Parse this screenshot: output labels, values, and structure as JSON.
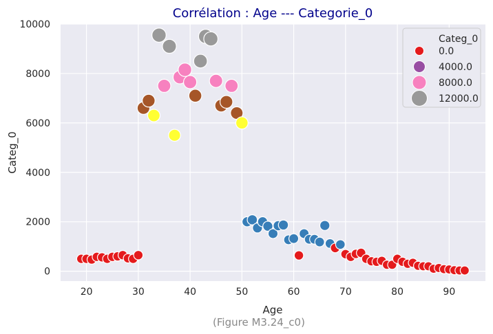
{
  "chart_data": {
    "type": "scatter",
    "title": "Corrélation :  Age --- Categorie_0",
    "xlabel": "Age",
    "ylabel": "Categ_0",
    "caption": "(Figure M3.24_c0)",
    "xlim": [
      15,
      97
    ],
    "ylim": [
      -400,
      10000
    ],
    "xticks": [
      20,
      30,
      40,
      50,
      60,
      70,
      80,
      90
    ],
    "yticks": [
      0,
      2000,
      4000,
      6000,
      8000,
      10000
    ],
    "grid": true,
    "legend": {
      "title": "Categ_0",
      "placement": "top-right",
      "entries": [
        {
          "label": "0.0",
          "color": "#e41a1c",
          "size_level": 1
        },
        {
          "label": "4000.0",
          "color": "#984ea3",
          "size_level": 2
        },
        {
          "label": "8000.0",
          "color": "#f781bf",
          "size_level": 3
        },
        {
          "label": "12000.0",
          "color": "#999999",
          "size_level": 4
        }
      ]
    },
    "colors": {
      "background": "#eaeaf2",
      "grid": "#ffffff",
      "title": "#00008b"
    },
    "points": [
      {
        "x": 19,
        "y": 500,
        "color": "#e41a1c"
      },
      {
        "x": 20,
        "y": 500,
        "color": "#e41a1c"
      },
      {
        "x": 21,
        "y": 470,
        "color": "#e41a1c"
      },
      {
        "x": 22,
        "y": 580,
        "color": "#e41a1c"
      },
      {
        "x": 23,
        "y": 560,
        "color": "#e41a1c"
      },
      {
        "x": 24,
        "y": 500,
        "color": "#e41a1c"
      },
      {
        "x": 25,
        "y": 580,
        "color": "#e41a1c"
      },
      {
        "x": 26,
        "y": 600,
        "color": "#e41a1c"
      },
      {
        "x": 27,
        "y": 650,
        "color": "#e41a1c"
      },
      {
        "x": 28,
        "y": 520,
        "color": "#e41a1c"
      },
      {
        "x": 29,
        "y": 500,
        "color": "#e41a1c"
      },
      {
        "x": 30,
        "y": 650,
        "color": "#e41a1c"
      },
      {
        "x": 31,
        "y": 6600,
        "color": "#a65628"
      },
      {
        "x": 32,
        "y": 6900,
        "color": "#a65628"
      },
      {
        "x": 33,
        "y": 6300,
        "color": "#ffff33"
      },
      {
        "x": 34,
        "y": 9550,
        "color": "#999999"
      },
      {
        "x": 35,
        "y": 7500,
        "color": "#f781bf"
      },
      {
        "x": 36,
        "y": 9100,
        "color": "#999999"
      },
      {
        "x": 37,
        "y": 5500,
        "color": "#ffff33"
      },
      {
        "x": 38,
        "y": 7850,
        "color": "#f781bf"
      },
      {
        "x": 39,
        "y": 8150,
        "color": "#f781bf"
      },
      {
        "x": 40,
        "y": 7650,
        "color": "#f781bf"
      },
      {
        "x": 41,
        "y": 7100,
        "color": "#a65628"
      },
      {
        "x": 42,
        "y": 8500,
        "color": "#999999"
      },
      {
        "x": 43,
        "y": 9500,
        "color": "#999999"
      },
      {
        "x": 44,
        "y": 9400,
        "color": "#999999"
      },
      {
        "x": 45,
        "y": 7700,
        "color": "#f781bf"
      },
      {
        "x": 46,
        "y": 6700,
        "color": "#a65628"
      },
      {
        "x": 47,
        "y": 6850,
        "color": "#a65628"
      },
      {
        "x": 48,
        "y": 7500,
        "color": "#f781bf"
      },
      {
        "x": 49,
        "y": 6400,
        "color": "#a65628"
      },
      {
        "x": 50,
        "y": 6000,
        "color": "#ffff33"
      },
      {
        "x": 51,
        "y": 2000,
        "color": "#377eb8"
      },
      {
        "x": 52,
        "y": 2080,
        "color": "#377eb8"
      },
      {
        "x": 53,
        "y": 1750,
        "color": "#377eb8"
      },
      {
        "x": 54,
        "y": 2000,
        "color": "#377eb8"
      },
      {
        "x": 55,
        "y": 1820,
        "color": "#377eb8"
      },
      {
        "x": 56,
        "y": 1520,
        "color": "#377eb8"
      },
      {
        "x": 57,
        "y": 1840,
        "color": "#377eb8"
      },
      {
        "x": 58,
        "y": 1870,
        "color": "#377eb8"
      },
      {
        "x": 59,
        "y": 1270,
        "color": "#377eb8"
      },
      {
        "x": 60,
        "y": 1320,
        "color": "#377eb8"
      },
      {
        "x": 61,
        "y": 640,
        "color": "#e41a1c"
      },
      {
        "x": 62,
        "y": 1520,
        "color": "#377eb8"
      },
      {
        "x": 63,
        "y": 1290,
        "color": "#377eb8"
      },
      {
        "x": 64,
        "y": 1290,
        "color": "#377eb8"
      },
      {
        "x": 65,
        "y": 1180,
        "color": "#377eb8"
      },
      {
        "x": 66,
        "y": 1850,
        "color": "#377eb8"
      },
      {
        "x": 67,
        "y": 1120,
        "color": "#377eb8"
      },
      {
        "x": 68,
        "y": 940,
        "color": "#e41a1c"
      },
      {
        "x": 69,
        "y": 1080,
        "color": "#377eb8"
      },
      {
        "x": 70,
        "y": 690,
        "color": "#e41a1c"
      },
      {
        "x": 71,
        "y": 580,
        "color": "#e41a1c"
      },
      {
        "x": 72,
        "y": 700,
        "color": "#e41a1c"
      },
      {
        "x": 73,
        "y": 740,
        "color": "#e41a1c"
      },
      {
        "x": 74,
        "y": 500,
        "color": "#e41a1c"
      },
      {
        "x": 75,
        "y": 400,
        "color": "#e41a1c"
      },
      {
        "x": 76,
        "y": 380,
        "color": "#e41a1c"
      },
      {
        "x": 77,
        "y": 420,
        "color": "#e41a1c"
      },
      {
        "x": 78,
        "y": 260,
        "color": "#e41a1c"
      },
      {
        "x": 79,
        "y": 260,
        "color": "#e41a1c"
      },
      {
        "x": 80,
        "y": 500,
        "color": "#e41a1c"
      },
      {
        "x": 81,
        "y": 380,
        "color": "#e41a1c"
      },
      {
        "x": 82,
        "y": 300,
        "color": "#e41a1c"
      },
      {
        "x": 83,
        "y": 340,
        "color": "#e41a1c"
      },
      {
        "x": 84,
        "y": 220,
        "color": "#e41a1c"
      },
      {
        "x": 85,
        "y": 200,
        "color": "#e41a1c"
      },
      {
        "x": 86,
        "y": 200,
        "color": "#e41a1c"
      },
      {
        "x": 87,
        "y": 100,
        "color": "#e41a1c"
      },
      {
        "x": 88,
        "y": 130,
        "color": "#e41a1c"
      },
      {
        "x": 89,
        "y": 80,
        "color": "#e41a1c"
      },
      {
        "x": 90,
        "y": 70,
        "color": "#e41a1c"
      },
      {
        "x": 91,
        "y": 40,
        "color": "#e41a1c"
      },
      {
        "x": 92,
        "y": 30,
        "color": "#e41a1c"
      },
      {
        "x": 93,
        "y": 30,
        "color": "#e41a1c"
      }
    ]
  }
}
